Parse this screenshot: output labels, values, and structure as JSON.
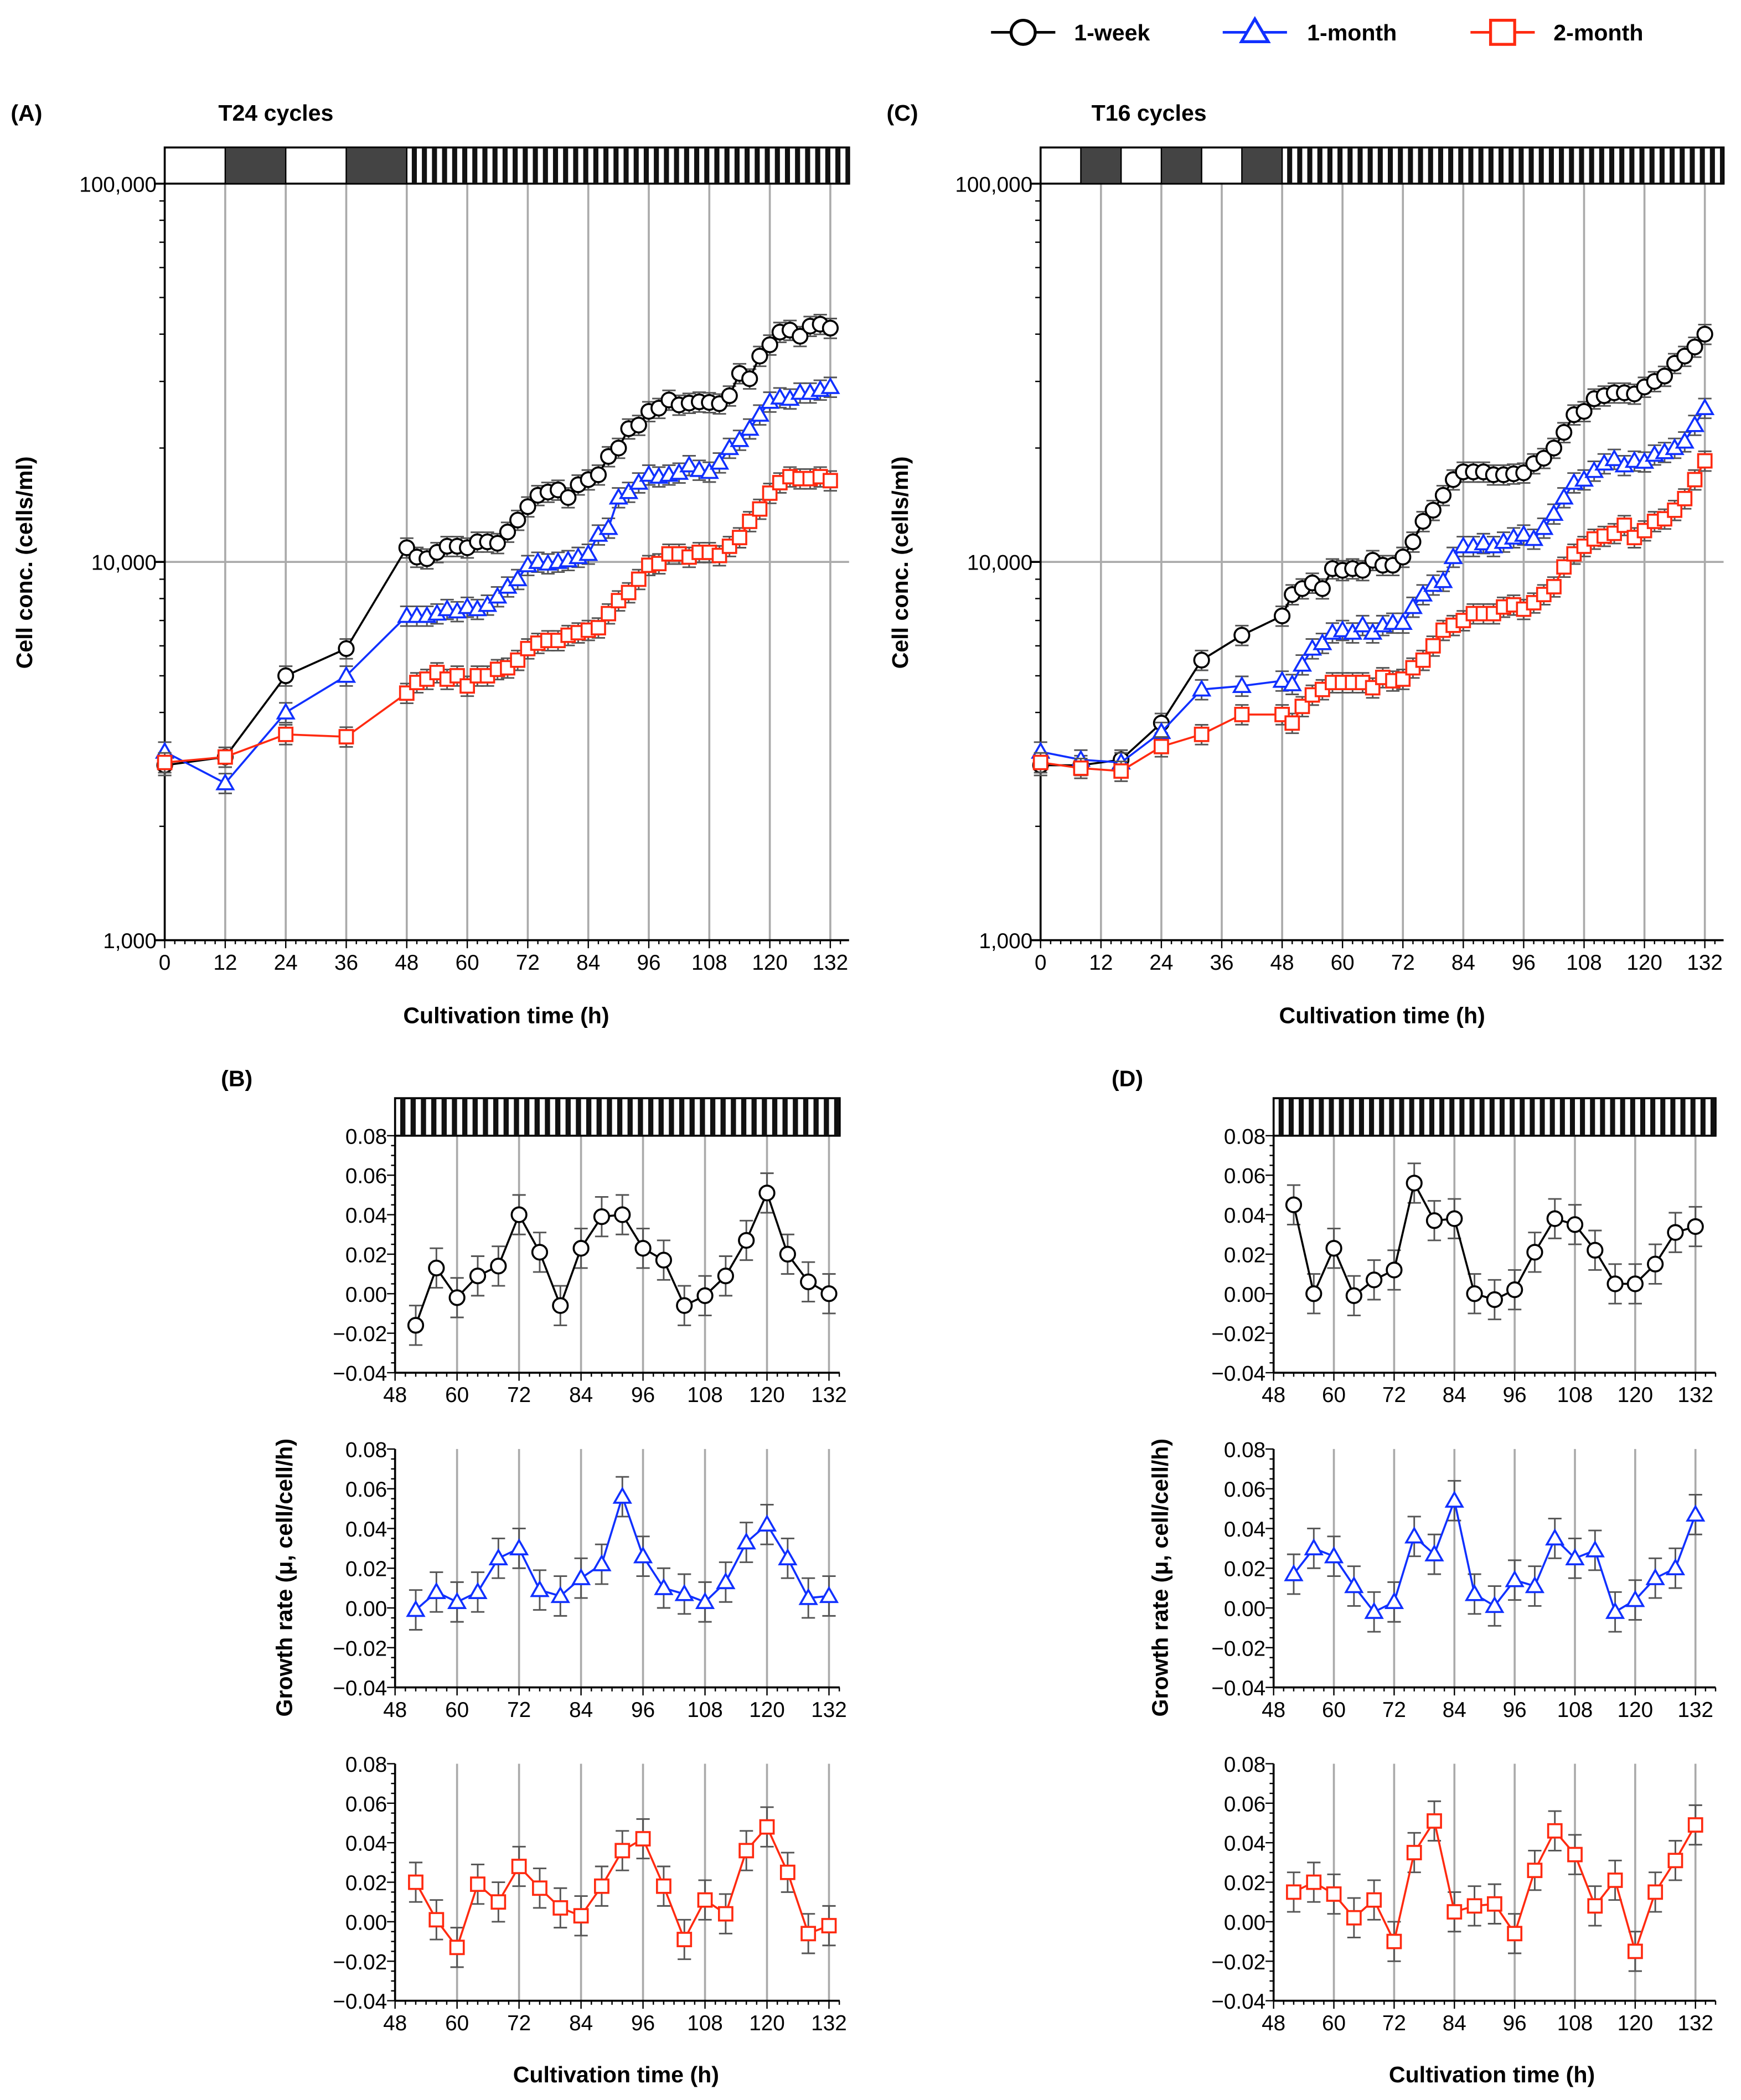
{
  "legend": [
    {
      "label": "1-week",
      "color": "#000000",
      "marker": "circle"
    },
    {
      "label": "1-month",
      "color": "#1030ff",
      "marker": "triangle"
    },
    {
      "label": "2-month",
      "color": "#ff2a10",
      "marker": "square"
    }
  ],
  "panels": {
    "A": {
      "tag": "(A)",
      "title": "T24 cycles"
    },
    "B": {
      "tag": "(B)"
    },
    "C": {
      "tag": "(C)",
      "title": "T16 cycles"
    },
    "D": {
      "tag": "(D)"
    }
  },
  "xlabel": "Cultivation time (h)",
  "ylabel_conc": "Cell conc. (cells/ml)",
  "ylabel_growth": "Growth rate (μ, cell/cell/h)",
  "chart_data": [
    {
      "id": "A",
      "type": "line",
      "yscale": "log",
      "ylim": [
        1000,
        100000
      ],
      "xlim": [
        0,
        132
      ],
      "yticks": [
        "1,000",
        "10,000",
        "100,000"
      ],
      "xticks": [
        0,
        12,
        24,
        36,
        48,
        60,
        72,
        84,
        96,
        108,
        120,
        132
      ],
      "photoperiod": {
        "dark_blocks": [
          [
            12,
            24
          ],
          [
            36,
            48
          ]
        ],
        "alternating_from": 48,
        "period_h": 2
      },
      "err_frac": 0.06,
      "x": [
        0,
        12,
        24,
        36,
        48,
        50,
        52,
        54,
        56,
        58,
        60,
        62,
        64,
        66,
        68,
        70,
        72,
        74,
        76,
        78,
        80,
        82,
        84,
        86,
        88,
        90,
        92,
        94,
        96,
        98,
        100,
        102,
        104,
        106,
        108,
        110,
        112,
        114,
        116,
        118,
        120,
        122,
        124,
        126,
        128,
        130,
        132
      ],
      "series": [
        {
          "name": "1-week",
          "values": [
            2900,
            3050,
            5000,
            5900,
            10900,
            10300,
            10200,
            10600,
            11000,
            11000,
            10900,
            11300,
            11300,
            11200,
            12000,
            12900,
            14000,
            15000,
            15300,
            15500,
            14800,
            16000,
            16500,
            17000,
            19000,
            20000,
            22500,
            23000,
            25000,
            25500,
            26800,
            26000,
            26300,
            26500,
            26400,
            26200,
            27500,
            31500,
            30500,
            35000,
            37500,
            40500,
            41000,
            39500,
            42000,
            42500,
            41500
          ]
        },
        {
          "name": "1-month",
          "values": [
            3150,
            2600,
            4000,
            5000,
            7200,
            7200,
            7200,
            7300,
            7500,
            7400,
            7600,
            7500,
            7700,
            8100,
            8600,
            9000,
            9800,
            10000,
            9900,
            10000,
            10100,
            10300,
            10500,
            11800,
            12300,
            14800,
            15300,
            16200,
            17000,
            16800,
            17000,
            17200,
            18000,
            17500,
            17300,
            18300,
            20000,
            21000,
            22500,
            24500,
            26500,
            27200,
            27000,
            28000,
            28000,
            28500,
            29000
          ]
        },
        {
          "name": "2-month",
          "values": [
            2950,
            3050,
            3500,
            3450,
            4500,
            4800,
            4900,
            5100,
            4900,
            5000,
            4700,
            5000,
            5000,
            5200,
            5250,
            5500,
            5900,
            6100,
            6200,
            6200,
            6400,
            6500,
            6600,
            6700,
            7300,
            7900,
            8300,
            9000,
            9800,
            9900,
            10500,
            10500,
            10300,
            10600,
            10600,
            10400,
            11000,
            11600,
            12800,
            13800,
            15200,
            16200,
            16800,
            16600,
            16600,
            16800,
            16400
          ]
        }
      ]
    },
    {
      "id": "C",
      "type": "line",
      "yscale": "log",
      "ylim": [
        1000,
        100000
      ],
      "xlim": [
        0,
        132
      ],
      "yticks": [
        "1,000",
        "10,000",
        "100,000"
      ],
      "xticks": [
        0,
        12,
        24,
        36,
        48,
        60,
        72,
        84,
        96,
        108,
        120,
        132
      ],
      "photoperiod": {
        "dark_blocks": [
          [
            8,
            16
          ],
          [
            24,
            32
          ],
          [
            40,
            48
          ]
        ],
        "alternating_from": 48,
        "period_h": 2
      },
      "err_frac": 0.06,
      "x": [
        0,
        8,
        16,
        24,
        32,
        40,
        48,
        50,
        52,
        54,
        56,
        58,
        60,
        62,
        64,
        66,
        68,
        70,
        72,
        74,
        76,
        78,
        80,
        82,
        84,
        86,
        88,
        90,
        92,
        94,
        96,
        98,
        100,
        102,
        104,
        106,
        108,
        110,
        112,
        114,
        116,
        118,
        120,
        122,
        124,
        126,
        128,
        130,
        132
      ],
      "series": [
        {
          "name": "1-week",
          "values": [
            2900,
            2900,
            3000,
            3750,
            5500,
            6400,
            7200,
            8200,
            8500,
            8800,
            8500,
            9600,
            9500,
            9600,
            9500,
            10100,
            9800,
            9800,
            10300,
            11300,
            12800,
            13700,
            15000,
            16500,
            17300,
            17300,
            17300,
            17000,
            17000,
            17100,
            17200,
            18200,
            18800,
            20000,
            22000,
            24500,
            25000,
            27000,
            27500,
            28000,
            28000,
            27800,
            29000,
            30000,
            31000,
            33500,
            35000,
            37000,
            40000
          ]
        },
        {
          "name": "1-month",
          "values": [
            3150,
            3000,
            2950,
            3550,
            4600,
            4700,
            4850,
            4750,
            5350,
            5900,
            6100,
            6500,
            6600,
            6500,
            6800,
            6500,
            6800,
            6900,
            6900,
            7600,
            8200,
            8700,
            8900,
            10300,
            11000,
            11000,
            11200,
            11000,
            11300,
            11600,
            11800,
            11500,
            12300,
            13400,
            14800,
            16200,
            16500,
            17400,
            18200,
            18700,
            18000,
            18500,
            18400,
            19200,
            19500,
            20000,
            20800,
            23000,
            25500
          ]
        },
        {
          "name": "2-month",
          "values": [
            2950,
            2850,
            2800,
            3250,
            3500,
            3950,
            3950,
            3750,
            4150,
            4450,
            4600,
            4800,
            4800,
            4800,
            4800,
            4650,
            4950,
            4850,
            4900,
            5250,
            5500,
            6000,
            6600,
            6800,
            7000,
            7300,
            7300,
            7300,
            7600,
            7700,
            7500,
            7800,
            8200,
            8600,
            9700,
            10500,
            11000,
            11500,
            11700,
            11900,
            12500,
            11600,
            12100,
            12800,
            13000,
            13700,
            14700,
            16500,
            18500
          ]
        }
      ]
    },
    {
      "id": "B",
      "type": "line",
      "ylim": [
        -0.04,
        0.08
      ],
      "xlim": [
        48,
        134
      ],
      "yticks": [
        "−0.04",
        "−0.02",
        "0.00",
        "0.02",
        "0.04",
        "0.06",
        "0.08"
      ],
      "xticks": [
        48,
        60,
        72,
        84,
        96,
        108,
        120,
        132
      ],
      "photoperiod": {
        "alternating_from": 48,
        "period_h": 2
      },
      "err": 0.01,
      "x": [
        52,
        56,
        60,
        64,
        68,
        72,
        76,
        80,
        84,
        88,
        92,
        96,
        100,
        104,
        108,
        112,
        116,
        120,
        124,
        128,
        132
      ],
      "series": [
        {
          "name": "1-week",
          "values": [
            -0.016,
            0.013,
            -0.002,
            0.009,
            0.014,
            0.04,
            0.021,
            -0.006,
            0.023,
            0.039,
            0.04,
            0.023,
            0.017,
            -0.006,
            -0.001,
            0.009,
            0.027,
            0.051,
            0.02,
            0.006,
            0.0
          ]
        },
        {
          "name": "1-month",
          "values": [
            -0.001,
            0.008,
            0.003,
            0.008,
            0.025,
            0.03,
            0.009,
            0.006,
            0.015,
            0.022,
            0.056,
            0.026,
            0.01,
            0.007,
            0.003,
            0.013,
            0.033,
            0.042,
            0.025,
            0.005,
            0.006
          ]
        },
        {
          "name": "2-month",
          "values": [
            0.02,
            0.001,
            -0.013,
            0.019,
            0.01,
            0.028,
            0.017,
            0.007,
            0.003,
            0.018,
            0.036,
            0.042,
            0.018,
            -0.009,
            0.011,
            0.004,
            0.036,
            0.048,
            0.025,
            -0.006,
            -0.002
          ]
        }
      ]
    },
    {
      "id": "D",
      "type": "line",
      "ylim": [
        -0.04,
        0.08
      ],
      "xlim": [
        48,
        136
      ],
      "yticks": [
        "−0.04",
        "−0.02",
        "0.00",
        "0.02",
        "0.04",
        "0.06",
        "0.08"
      ],
      "xticks": [
        48,
        60,
        72,
        84,
        96,
        108,
        120,
        132
      ],
      "photoperiod": {
        "alternating_from": 48,
        "period_h": 2
      },
      "err": 0.01,
      "x": [
        52,
        56,
        60,
        64,
        68,
        72,
        76,
        80,
        84,
        88,
        92,
        96,
        100,
        104,
        108,
        112,
        116,
        120,
        124,
        128,
        132
      ],
      "series": [
        {
          "name": "1-week",
          "values": [
            0.045,
            0.0,
            0.023,
            -0.001,
            0.007,
            0.012,
            0.056,
            0.037,
            0.038,
            0.0,
            -0.003,
            0.002,
            0.021,
            0.038,
            0.035,
            0.022,
            0.005,
            0.005,
            0.015,
            0.031,
            0.034
          ]
        },
        {
          "name": "1-month",
          "values": [
            0.017,
            0.03,
            0.026,
            0.011,
            -0.002,
            0.003,
            0.036,
            0.027,
            0.054,
            0.007,
            0.001,
            0.014,
            0.011,
            0.035,
            0.025,
            0.029,
            -0.002,
            0.004,
            0.015,
            0.02,
            0.047
          ]
        },
        {
          "name": "2-month",
          "values": [
            0.015,
            0.02,
            0.014,
            0.002,
            0.011,
            -0.01,
            0.035,
            0.051,
            0.005,
            0.008,
            0.009,
            -0.006,
            0.026,
            0.046,
            0.034,
            0.008,
            0.021,
            -0.015,
            0.015,
            0.031,
            0.049
          ]
        }
      ]
    }
  ]
}
